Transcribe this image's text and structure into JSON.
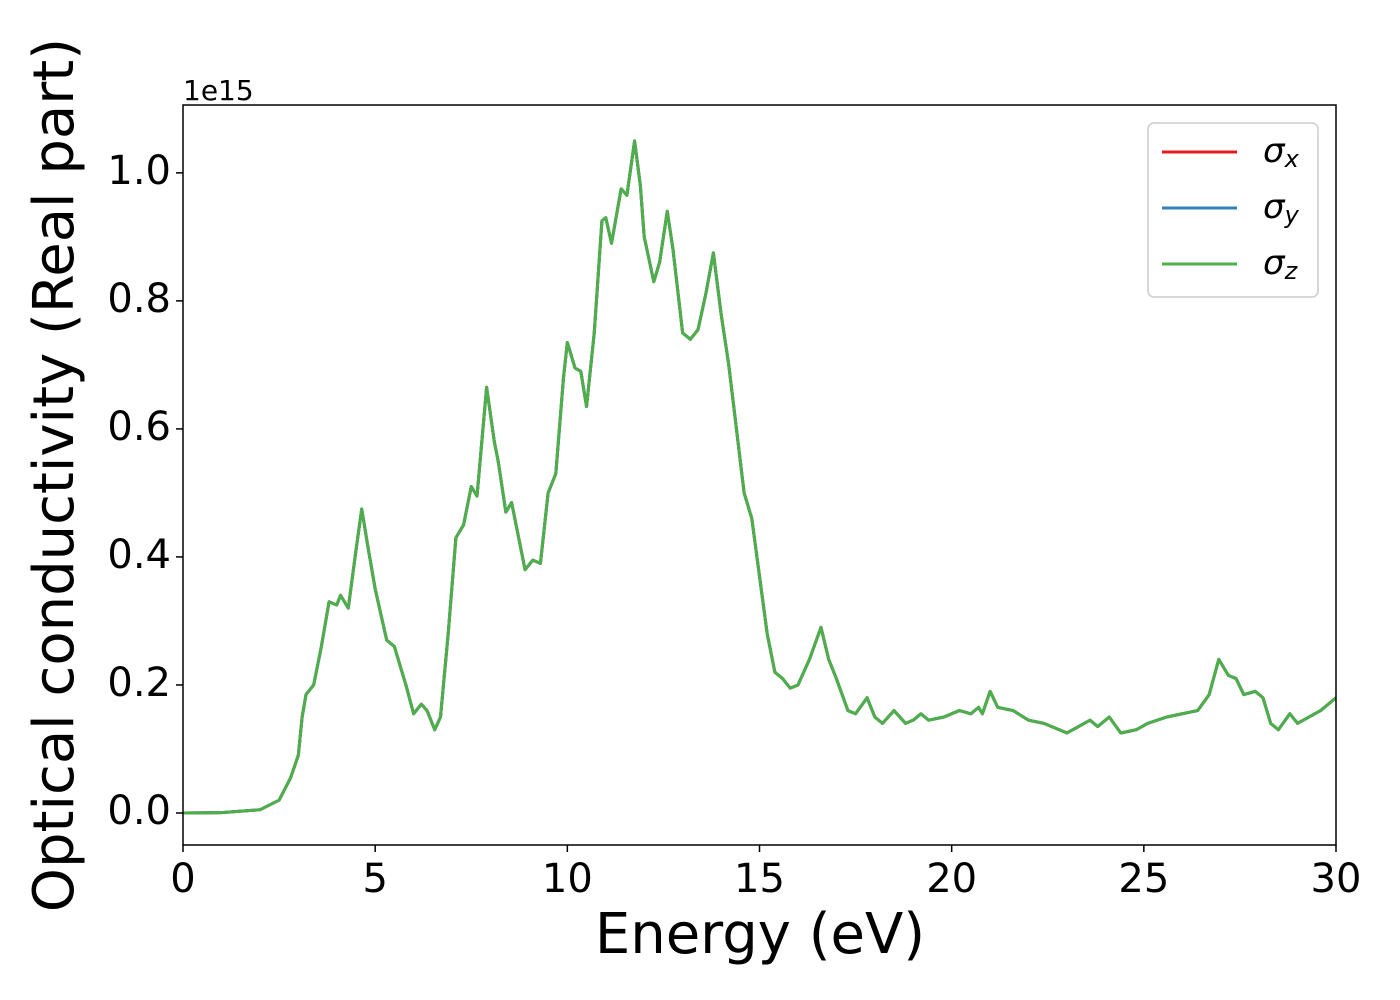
{
  "chart_data": {
    "type": "line",
    "x_label": "Energy (eV)",
    "y_label": "Optical conductivity (Real part)",
    "y_offset_label": "1e15",
    "xlim": [
      0,
      30
    ],
    "xticks": [
      0,
      5,
      10,
      15,
      20,
      25,
      30
    ],
    "ylim": [
      -0.05,
      1.106
    ],
    "yticks": [
      {
        "value": 0,
        "label": "0.0"
      },
      0.2,
      0.4,
      0.6,
      0.8,
      {
        "value": 1,
        "label": "1.0"
      }
    ],
    "legend": "upper right",
    "grid": false,
    "x": [
      0,
      1,
      2,
      2.5,
      2.8,
      3.0,
      3.1,
      3.2,
      3.4,
      3.6,
      3.8,
      4.0,
      4.1,
      4.3,
      4.5,
      4.65,
      4.8,
      5.0,
      5.3,
      5.5,
      5.8,
      6.0,
      6.2,
      6.35,
      6.55,
      6.7,
      6.9,
      7.1,
      7.3,
      7.5,
      7.65,
      7.9,
      8.1,
      8.2,
      8.4,
      8.55,
      8.7,
      8.9,
      9.1,
      9.3,
      9.5,
      9.7,
      9.9,
      10.0,
      10.2,
      10.35,
      10.5,
      10.7,
      10.9,
      11.0,
      11.15,
      11.4,
      11.55,
      11.75,
      11.9,
      12.0,
      12.25,
      12.4,
      12.6,
      12.75,
      13.0,
      13.2,
      13.4,
      13.6,
      13.8,
      14.0,
      14.2,
      14.4,
      14.6,
      14.8,
      15.0,
      15.2,
      15.4,
      15.6,
      15.8,
      16.0,
      16.3,
      16.6,
      16.8,
      17.0,
      17.3,
      17.5,
      17.8,
      18.0,
      18.2,
      18.5,
      18.8,
      19.0,
      19.2,
      19.4,
      19.8,
      20.2,
      20.5,
      20.7,
      20.8,
      21.0,
      21.2,
      21.6,
      22.0,
      22.4,
      22.8,
      23.0,
      23.3,
      23.6,
      23.8,
      24.1,
      24.4,
      24.8,
      25.1,
      25.6,
      26.0,
      26.4,
      26.7,
      26.95,
      27.2,
      27.4,
      27.6,
      27.9,
      28.1,
      28.3,
      28.5,
      28.8,
      29.0,
      29.3,
      29.6,
      30.0
    ],
    "series": [
      {
        "name": "σx",
        "color": "#e41a1c",
        "values": [
          0,
          0.0005,
          0.005,
          0.02,
          0.055,
          0.09,
          0.15,
          0.185,
          0.2,
          0.26,
          0.33,
          0.325,
          0.34,
          0.32,
          0.41,
          0.475,
          0.42,
          0.35,
          0.27,
          0.26,
          0.2,
          0.155,
          0.17,
          0.16,
          0.13,
          0.15,
          0.28,
          0.43,
          0.45,
          0.51,
          0.495,
          0.665,
          0.58,
          0.55,
          0.47,
          0.485,
          0.44,
          0.38,
          0.395,
          0.39,
          0.5,
          0.53,
          0.68,
          0.735,
          0.695,
          0.69,
          0.635,
          0.75,
          0.925,
          0.93,
          0.89,
          0.975,
          0.965,
          1.05,
          0.98,
          0.9,
          0.83,
          0.86,
          0.94,
          0.88,
          0.75,
          0.74,
          0.755,
          0.81,
          0.875,
          0.78,
          0.7,
          0.6,
          0.5,
          0.46,
          0.37,
          0.28,
          0.22,
          0.21,
          0.195,
          0.2,
          0.24,
          0.29,
          0.24,
          0.21,
          0.16,
          0.155,
          0.18,
          0.15,
          0.14,
          0.16,
          0.14,
          0.145,
          0.155,
          0.145,
          0.15,
          0.16,
          0.155,
          0.165,
          0.155,
          0.19,
          0.165,
          0.16,
          0.145,
          0.14,
          0.13,
          0.125,
          0.135,
          0.145,
          0.135,
          0.15,
          0.125,
          0.13,
          0.14,
          0.15,
          0.155,
          0.16,
          0.185,
          0.24,
          0.215,
          0.21,
          0.185,
          0.19,
          0.18,
          0.14,
          0.13,
          0.155,
          0.14,
          0.15,
          0.16,
          0.18
        ]
      },
      {
        "name": "σy",
        "color": "#377eb8",
        "values": [
          0,
          0.0005,
          0.005,
          0.02,
          0.055,
          0.09,
          0.15,
          0.185,
          0.2,
          0.26,
          0.33,
          0.325,
          0.34,
          0.32,
          0.41,
          0.475,
          0.42,
          0.35,
          0.27,
          0.26,
          0.2,
          0.155,
          0.17,
          0.16,
          0.13,
          0.15,
          0.28,
          0.43,
          0.45,
          0.51,
          0.495,
          0.665,
          0.58,
          0.55,
          0.47,
          0.485,
          0.44,
          0.38,
          0.395,
          0.39,
          0.5,
          0.53,
          0.68,
          0.735,
          0.695,
          0.69,
          0.635,
          0.75,
          0.925,
          0.93,
          0.89,
          0.975,
          0.965,
          1.05,
          0.98,
          0.9,
          0.83,
          0.86,
          0.94,
          0.88,
          0.75,
          0.74,
          0.755,
          0.81,
          0.875,
          0.78,
          0.7,
          0.6,
          0.5,
          0.46,
          0.37,
          0.28,
          0.22,
          0.21,
          0.195,
          0.2,
          0.24,
          0.29,
          0.24,
          0.21,
          0.16,
          0.155,
          0.18,
          0.15,
          0.14,
          0.16,
          0.14,
          0.145,
          0.155,
          0.145,
          0.15,
          0.16,
          0.155,
          0.165,
          0.155,
          0.19,
          0.165,
          0.16,
          0.145,
          0.14,
          0.13,
          0.125,
          0.135,
          0.145,
          0.135,
          0.15,
          0.125,
          0.13,
          0.14,
          0.15,
          0.155,
          0.16,
          0.185,
          0.24,
          0.215,
          0.21,
          0.185,
          0.19,
          0.18,
          0.14,
          0.13,
          0.155,
          0.14,
          0.15,
          0.16,
          0.18
        ]
      },
      {
        "name": "σz",
        "color": "#4daf4a",
        "values": [
          0,
          0.0005,
          0.005,
          0.02,
          0.055,
          0.09,
          0.15,
          0.185,
          0.2,
          0.26,
          0.33,
          0.325,
          0.34,
          0.32,
          0.41,
          0.475,
          0.42,
          0.35,
          0.27,
          0.26,
          0.2,
          0.155,
          0.17,
          0.16,
          0.13,
          0.15,
          0.28,
          0.43,
          0.45,
          0.51,
          0.495,
          0.665,
          0.58,
          0.55,
          0.47,
          0.485,
          0.44,
          0.38,
          0.395,
          0.39,
          0.5,
          0.53,
          0.68,
          0.735,
          0.695,
          0.69,
          0.635,
          0.75,
          0.925,
          0.93,
          0.89,
          0.975,
          0.965,
          1.05,
          0.98,
          0.9,
          0.83,
          0.86,
          0.94,
          0.88,
          0.75,
          0.74,
          0.755,
          0.81,
          0.875,
          0.78,
          0.7,
          0.6,
          0.5,
          0.46,
          0.37,
          0.28,
          0.22,
          0.21,
          0.195,
          0.2,
          0.24,
          0.29,
          0.24,
          0.21,
          0.16,
          0.155,
          0.18,
          0.15,
          0.14,
          0.16,
          0.14,
          0.145,
          0.155,
          0.145,
          0.15,
          0.16,
          0.155,
          0.165,
          0.155,
          0.19,
          0.165,
          0.16,
          0.145,
          0.14,
          0.13,
          0.125,
          0.135,
          0.145,
          0.135,
          0.15,
          0.125,
          0.13,
          0.14,
          0.15,
          0.155,
          0.16,
          0.185,
          0.24,
          0.215,
          0.21,
          0.185,
          0.19,
          0.18,
          0.14,
          0.13,
          0.155,
          0.14,
          0.15,
          0.16,
          0.18
        ]
      }
    ]
  }
}
